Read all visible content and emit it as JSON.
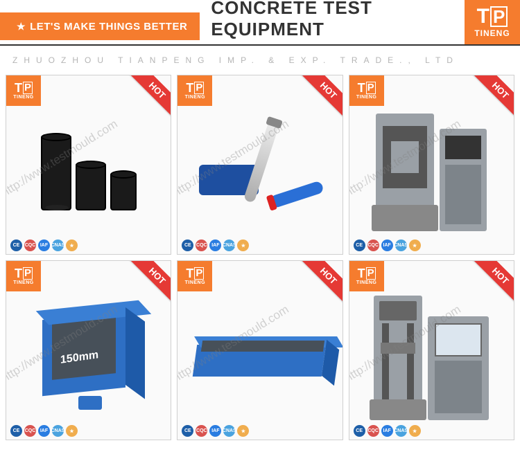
{
  "header": {
    "tagline": "LET'S MAKE THINGS BETTER",
    "title": "CONCRETE TEST EQUIPMENT",
    "brand_short": "TP",
    "brand_full": "TINENG"
  },
  "company_strip": "ZHUOZHOU TIANPENG IMP. & EXP. TRADE., LTD",
  "card_common": {
    "hot_label": "HOT",
    "brand_short": "TP",
    "brand_full": "TINENG",
    "watermark": "http://www.testmould.com",
    "cert_badges": [
      "CE",
      "CQC",
      "IAF",
      "CNAS",
      "★"
    ]
  },
  "products": [
    {
      "id": "cylinder-mould",
      "cube_label": ""
    },
    {
      "id": "rebound-hammer",
      "cube_label": ""
    },
    {
      "id": "compression-press",
      "cube_label": ""
    },
    {
      "id": "cube-mould",
      "cube_label": "150mm"
    },
    {
      "id": "beam-mould",
      "cube_label": ""
    },
    {
      "id": "universal-tester",
      "cube_label": ""
    }
  ],
  "colors": {
    "accent_orange": "#f57c2e",
    "hot_red": "#e53935",
    "product_blue": "#2e6fc4",
    "machine_grey": "#9aa0a6",
    "border_grey": "#cfcfcf",
    "text_dark": "#333333",
    "strip_grey": "#b5b5b5"
  }
}
